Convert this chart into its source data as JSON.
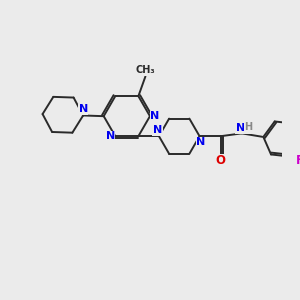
{
  "background_color": "#EBEBEB",
  "bond_color_dark": "#2a2a2a",
  "bond_color_ring": "#2a2a2a",
  "bond_width": 1.4,
  "atom_colors": {
    "N": "#0000EE",
    "O": "#DD0000",
    "F": "#CC00CC",
    "C": "#1a1a1a",
    "H": "#888888"
  },
  "figsize": [
    3.0,
    3.0
  ],
  "dpi": 100,
  "xlim": [
    0,
    10
  ],
  "ylim": [
    0,
    10
  ]
}
